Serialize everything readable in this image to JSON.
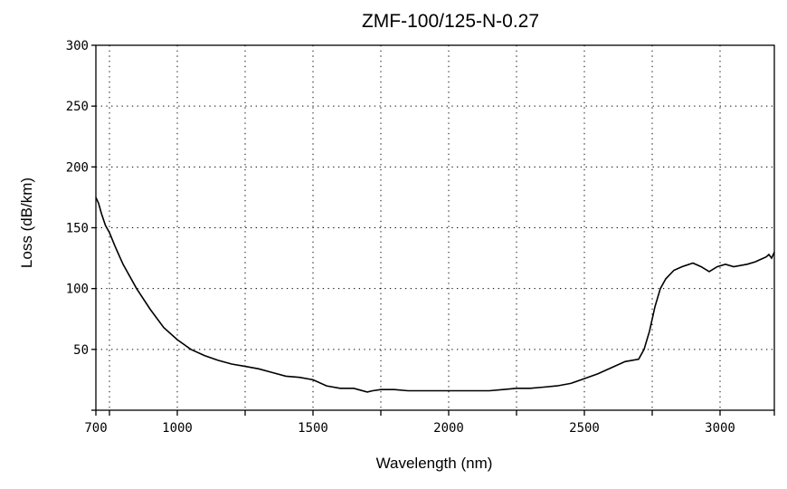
{
  "chart_data": {
    "type": "line",
    "title": "ZMF-100/125-N-0.27",
    "xlabel": "Wavelength (nm)",
    "ylabel": "Loss (dB/km)",
    "xlim": [
      700,
      3200
    ],
    "ylim": [
      0,
      300
    ],
    "x_ticks": [
      700,
      750,
      1000,
      1250,
      1500,
      1750,
      2000,
      2250,
      2500,
      2750,
      3000,
      3200
    ],
    "x_tick_labels": [
      "700",
      "",
      "1000",
      "",
      "1500",
      "",
      "2000",
      "",
      "2500",
      "",
      "3000",
      ""
    ],
    "y_ticks": [
      0,
      50,
      100,
      150,
      200,
      250,
      300
    ],
    "y_tick_labels": [
      "",
      "50",
      "100",
      "150",
      "200",
      "250",
      "300"
    ],
    "grid": true,
    "grid_style": "dotted",
    "legend": false,
    "line_color": "#000000",
    "series": [
      {
        "x": [
          700,
          710,
          720,
          735,
          750,
          770,
          800,
          850,
          900,
          950,
          1000,
          1050,
          1100,
          1150,
          1200,
          1250,
          1300,
          1350,
          1400,
          1450,
          1500,
          1550,
          1600,
          1650,
          1700,
          1720,
          1750,
          1800,
          1850,
          1900,
          1950,
          2000,
          2050,
          2100,
          2150,
          2200,
          2250,
          2300,
          2350,
          2400,
          2450,
          2500,
          2550,
          2600,
          2650,
          2700,
          2720,
          2740,
          2760,
          2780,
          2800,
          2830,
          2860,
          2900,
          2930,
          2960,
          2990,
          3020,
          3050,
          3100,
          3130,
          3150,
          3170,
          3180,
          3190,
          3200
        ],
        "y": [
          175,
          170,
          162,
          152,
          146,
          135,
          120,
          100,
          83,
          68,
          58,
          50,
          45,
          41,
          38,
          36,
          34,
          31,
          28,
          27,
          25,
          20,
          18,
          18,
          15,
          16,
          17,
          17,
          16,
          16,
          16,
          16,
          16,
          16,
          16,
          17,
          18,
          18,
          19,
          20,
          22,
          26,
          30,
          35,
          40,
          42,
          50,
          65,
          85,
          100,
          108,
          115,
          118,
          121,
          118,
          114,
          118,
          120,
          118,
          120,
          122,
          124,
          126,
          128,
          125,
          130
        ]
      }
    ]
  }
}
